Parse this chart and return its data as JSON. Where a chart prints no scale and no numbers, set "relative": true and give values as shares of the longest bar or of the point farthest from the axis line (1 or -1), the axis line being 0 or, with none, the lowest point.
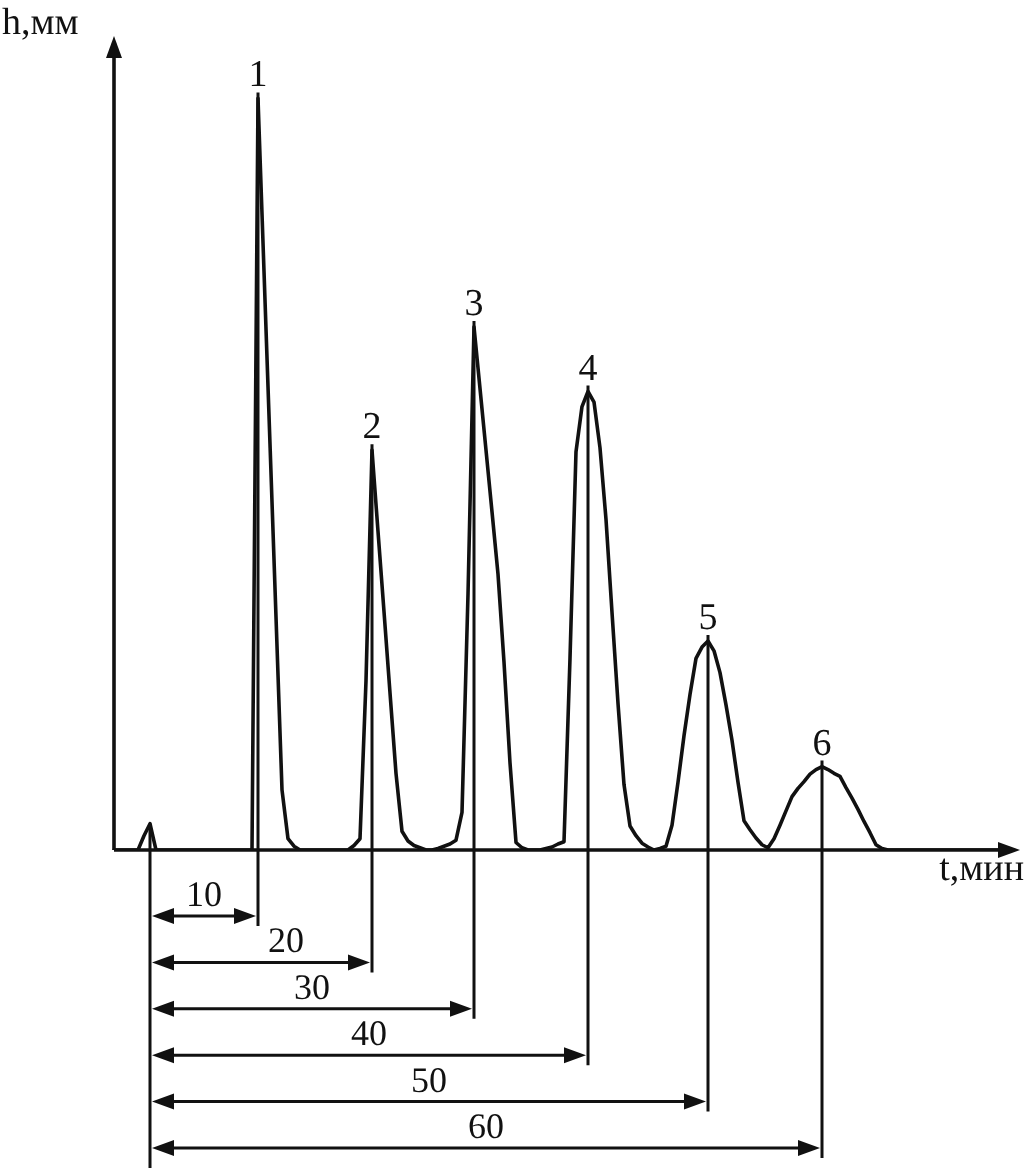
{
  "chart_data": {
    "type": "line",
    "relative": true,
    "xlabel": "t,мин",
    "ylabel": "h,мм",
    "categories": [
      null,
      null,
      null,
      null,
      null,
      null,
      null,
      null,
      null,
      null,
      null,
      null,
      null,
      null,
      null,
      null,
      null,
      null,
      null,
      null,
      null,
      null,
      null,
      null,
      null,
      null,
      null,
      null,
      null,
      null,
      null,
      null,
      null,
      null,
      null,
      null,
      null,
      null,
      null,
      null,
      null,
      null,
      null,
      null,
      null,
      null,
      null,
      null,
      null,
      null,
      null,
      null,
      null,
      null,
      null,
      null,
      null,
      null,
      null,
      null,
      null,
      null,
      null,
      null,
      null,
      null,
      null,
      null,
      null,
      null,
      null,
      null,
      null,
      null,
      null,
      null,
      null,
      null,
      null,
      null,
      null,
      null,
      null,
      null,
      null,
      null,
      null,
      null,
      null,
      null,
      null,
      null,
      null,
      null,
      null,
      null,
      null,
      null,
      null,
      null,
      null,
      null,
      null,
      null,
      null,
      null,
      null,
      null,
      null,
      null,
      null,
      null,
      null,
      null,
      null,
      null,
      null,
      null,
      null,
      null,
      null,
      null,
      null,
      null,
      null,
      null,
      null,
      null,
      null,
      null,
      null,
      null,
      null,
      null,
      null,
      null,
      null,
      null,
      null,
      null,
      null,
      null,
      null,
      null,
      null,
      null,
      null,
      null,
      null,
      null,
      null
    ],
    "series": [
      {
        "color": "#111111",
        "values": [
          0,
          0,
          0,
          0,
          0,
          0.019,
          0.035,
          0,
          0,
          0,
          0,
          0,
          0,
          0,
          0,
          0,
          0,
          0,
          0,
          0,
          0,
          0,
          0,
          0,
          1,
          0.77,
          0.54,
          0.31,
          0.08,
          0.015,
          0.005,
          0,
          0,
          0,
          0,
          0,
          0,
          0,
          0,
          0,
          0.006,
          0.015,
          0.225,
          0.532,
          0.424,
          0.317,
          0.209,
          0.102,
          0.025,
          0.012,
          0.006,
          0.003,
          0,
          0,
          0.002,
          0.005,
          0.008,
          0.013,
          0.05,
          0.34,
          0.696,
          0.614,
          0.532,
          0.45,
          0.367,
          0.25,
          0.116,
          0.01,
          0.003,
          0,
          0,
          0,
          0.002,
          0.004,
          0.008,
          0.011,
          0.255,
          0.53,
          0.59,
          0.61,
          0.596,
          0.535,
          0.44,
          0.316,
          0.195,
          0.087,
          0.032,
          0.019,
          0.009,
          0.004,
          0,
          0.002,
          0.005,
          0.033,
          0.09,
          0.152,
          0.207,
          0.255,
          0.27,
          0.278,
          0.265,
          0.236,
          0.193,
          0.146,
          0.09,
          0.039,
          0.027,
          0.016,
          0.007,
          0.003,
          0.015,
          0.033,
          0.052,
          0.071,
          0.082,
          0.091,
          0.101,
          0.107,
          0.111,
          0.107,
          0.102,
          0.098,
          0.083,
          0.069,
          0.054,
          0.038,
          0.023,
          0.007,
          0.002,
          0,
          0,
          0,
          0,
          0,
          0,
          0,
          0,
          0,
          0,
          0,
          0,
          0,
          0,
          0,
          0,
          0,
          0,
          0,
          0,
          0,
          0
        ]
      }
    ],
    "annotations": [
      {
        "text": "1",
        "y": 1
      },
      {
        "text": "2",
        "y": 0.532
      },
      {
        "text": "3",
        "y": 0.696
      },
      {
        "text": "4",
        "y": 0.61
      },
      {
        "text": "5",
        "y": 0.278
      },
      {
        "text": "6",
        "y": 0.111
      },
      "10",
      "20",
      "30",
      "40",
      "50",
      "60"
    ],
    "tick_labels": false,
    "legend": false,
    "marker": "none",
    "line_style": "solid"
  }
}
